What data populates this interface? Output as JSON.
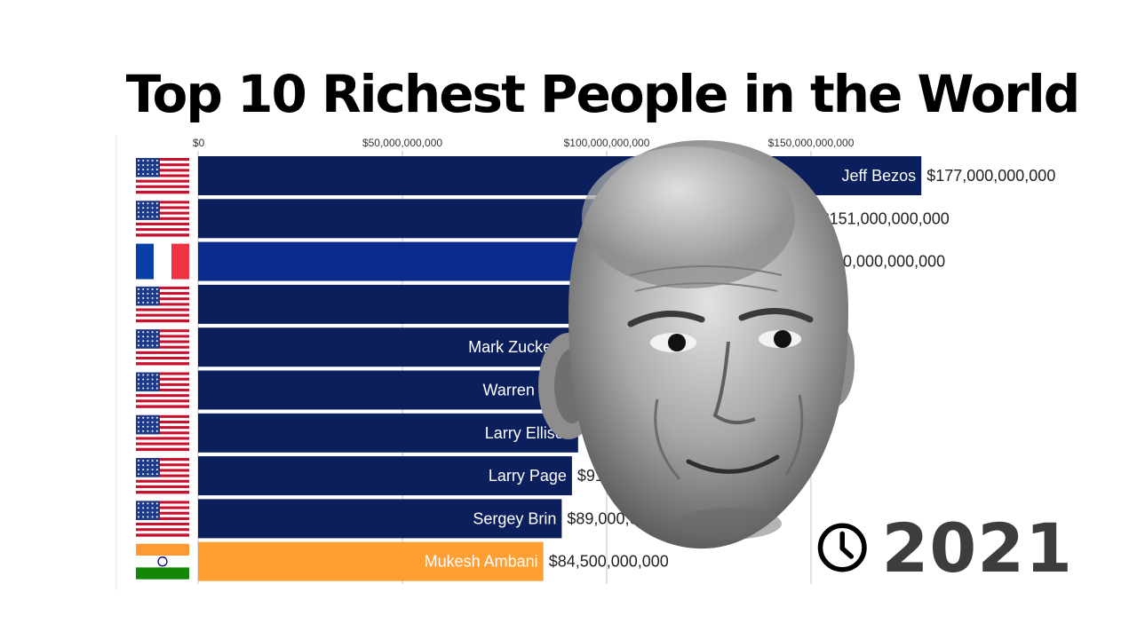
{
  "title": "Top 10 Richest People in the World",
  "year": "2021",
  "chart_data": {
    "type": "bar",
    "orientation": "horizontal",
    "title": "Top 10 Richest People in the World",
    "xlim": [
      0,
      200000000000
    ],
    "ticks": [
      {
        "value": 0,
        "label": "$0"
      },
      {
        "value": 50000000000,
        "label": "$50,000,000,000"
      },
      {
        "value": 100000000000,
        "label": "$100,000,000,000"
      },
      {
        "value": 150000000000,
        "label": "$150,000,000,000"
      }
    ],
    "grid": true,
    "bars": [
      {
        "name": "Jeff Bezos",
        "value": 177000000000,
        "value_label": "$177,000,000,000",
        "country": "US",
        "color": "#0b1f5c"
      },
      {
        "name": "",
        "value": 151000000000,
        "value_label": "$151,000,000,000",
        "country": "US",
        "color": "#0b1f5c"
      },
      {
        "name": "",
        "value": 150000000000,
        "value_label": "$150,000,000,000",
        "country": "FR",
        "color": "#0a2a8c"
      },
      {
        "name": "",
        "value": 124000000000,
        "value_label": "",
        "country": "US",
        "color": "#0b1f5c"
      },
      {
        "name": "Mark Zuckerberg",
        "value": 97000000000,
        "value_label": "",
        "country": "US",
        "color": "#0b1f5c"
      },
      {
        "name": "Warren Buffett",
        "value": 96000000000,
        "value_label": "",
        "country": "US",
        "color": "#0b1f5c"
      },
      {
        "name": "Larry Ellison",
        "value": 93000000000,
        "value_label": "",
        "country": "US",
        "color": "#0b1f5c"
      },
      {
        "name": "Larry Page",
        "value": 91500000000,
        "value_label": "$91,500,000,000",
        "country": "US",
        "color": "#0b1f5c"
      },
      {
        "name": "Sergey Brin",
        "value": 89000000000,
        "value_label": "$89,000,000,000",
        "country": "US",
        "color": "#0b1f5c"
      },
      {
        "name": "Mukesh Ambani",
        "value": 84500000000,
        "value_label": "$84,500,000,000",
        "country": "IN",
        "color": "#ff9e33"
      }
    ]
  },
  "colors": {
    "bar_us": "#0b1f5c",
    "bar_fr": "#0a2a8c",
    "bar_in": "#ff9e33",
    "grid": "#d9d9d9",
    "year_text": "#3d3d3d"
  },
  "icons": {
    "clock": "clock-icon",
    "overlay_portrait": "face-portrait"
  }
}
